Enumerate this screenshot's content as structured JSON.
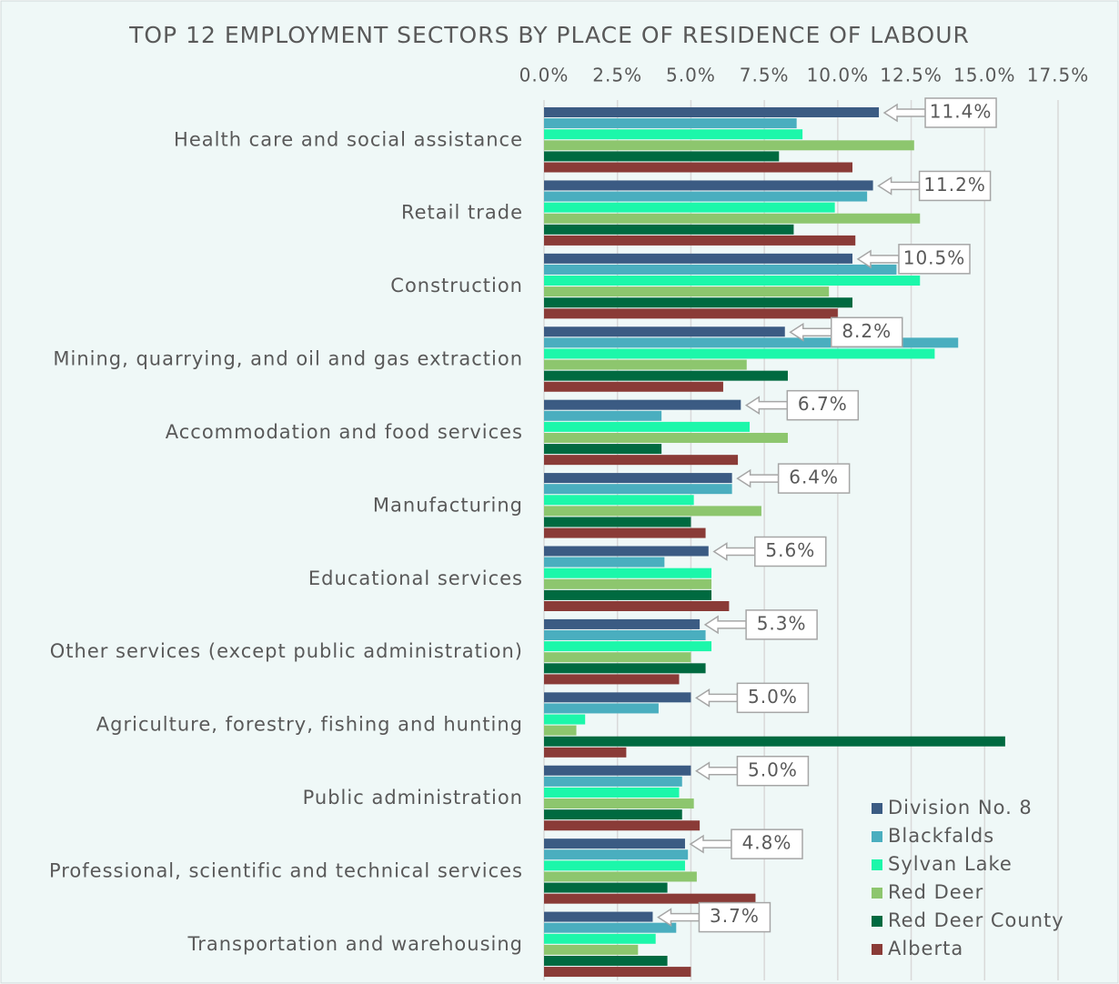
{
  "chart_data": {
    "type": "bar",
    "orientation": "horizontal",
    "title": "TOP 12 EMPLOYMENT SECTORS BY PLACE OF RESIDENCE OF LABOUR",
    "categories": [
      "Health care and social assistance",
      "Retail trade",
      "Construction",
      "Mining, quarrying, and oil and gas extraction",
      "Accommodation and food services",
      "Manufacturing",
      "Educational services",
      "Other services (except public administration)",
      "Agriculture, forestry, fishing and hunting",
      "Public administration",
      "Professional, scientific and technical services",
      "Transportation and warehousing"
    ],
    "series": [
      {
        "name": "Division No. 8",
        "color": "#3b5b83",
        "values": [
          11.4,
          11.2,
          10.5,
          8.2,
          6.7,
          6.4,
          5.6,
          5.3,
          5.0,
          5.0,
          4.8,
          3.7
        ],
        "value_labels": [
          "11.4%",
          "11.2%",
          "10.5%",
          "8.2%",
          "6.7%",
          "6.4%",
          "5.6%",
          "5.3%",
          "5.0%",
          "5.0%",
          "4.8%",
          "3.7%"
        ]
      },
      {
        "name": "Blackfalds",
        "color": "#4aaebf",
        "values": [
          8.6,
          11.0,
          12.0,
          14.1,
          4.0,
          6.4,
          4.1,
          5.5,
          3.9,
          4.7,
          4.9,
          4.5
        ]
      },
      {
        "name": "Sylvan Lake",
        "color": "#1cf7aa",
        "values": [
          8.8,
          9.9,
          12.8,
          13.3,
          7.0,
          5.1,
          5.7,
          5.7,
          1.4,
          4.6,
          4.8,
          3.8
        ]
      },
      {
        "name": "Red Deer",
        "color": "#8dc66e",
        "values": [
          12.6,
          12.8,
          9.7,
          6.9,
          8.3,
          7.4,
          5.7,
          5.0,
          1.1,
          5.1,
          5.2,
          3.2
        ]
      },
      {
        "name": "Red Deer County",
        "color": "#006a40",
        "values": [
          8.0,
          8.5,
          10.5,
          8.3,
          4.0,
          5.0,
          5.7,
          5.5,
          15.7,
          4.7,
          4.2,
          4.2
        ]
      },
      {
        "name": "Alberta",
        "color": "#8a3b37",
        "values": [
          10.5,
          10.6,
          10.0,
          6.1,
          6.6,
          5.5,
          6.3,
          4.6,
          2.8,
          5.3,
          7.2,
          5.0
        ]
      }
    ],
    "xlim": [
      0,
      17.5
    ],
    "xticks": [
      {
        "value": 0,
        "label": "0.0%"
      },
      {
        "value": 2.5,
        "label": "2.5%"
      },
      {
        "value": 5,
        "label": "5.0%"
      },
      {
        "value": 7.5,
        "label": "7.5%"
      },
      {
        "value": 10,
        "label": "10.0%"
      },
      {
        "value": 12.5,
        "label": "12.5%"
      },
      {
        "value": 15,
        "label": "15.0%"
      },
      {
        "value": 17.5,
        "label": "17.5%"
      }
    ],
    "grid": true,
    "legend": "bottom-right"
  }
}
